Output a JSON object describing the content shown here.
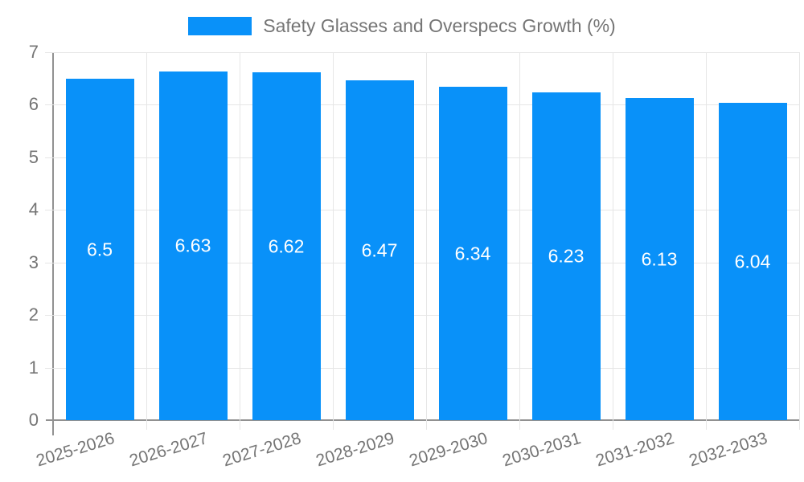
{
  "chart_data": {
    "type": "bar",
    "title": "Safety Glasses and Overspecs Growth (%)",
    "legend": {
      "position": "top",
      "entries": [
        "Safety Glasses and Overspecs Growth (%)"
      ]
    },
    "categories": [
      "2025-2026",
      "2026-2027",
      "2027-2028",
      "2028-2029",
      "2029-2030",
      "2030-2031",
      "2031-2032",
      "2032-2033"
    ],
    "series": [
      {
        "name": "Safety Glasses and Overspecs Growth (%)",
        "values": [
          6.5,
          6.63,
          6.62,
          6.47,
          6.34,
          6.23,
          6.13,
          6.04
        ],
        "value_labels": [
          "6.5",
          "6.63",
          "6.62",
          "6.47",
          "6.34",
          "6.23",
          "6.13",
          "6.04"
        ]
      }
    ],
    "xlabel": "",
    "ylabel": "",
    "ylim": [
      0,
      7
    ],
    "yticks": [
      0,
      1,
      2,
      3,
      4,
      5,
      6,
      7
    ],
    "ytick_labels": [
      "0",
      "1",
      "2",
      "3",
      "4",
      "5",
      "6",
      "7"
    ],
    "grid": "on",
    "x_label_rotation_deg": -17,
    "colors": {
      "bar": "#0991f9",
      "value_label_text": "#ffffff",
      "axis_text": "#757575",
      "gridline": "#e6e6e6",
      "axis_line": "#919191",
      "background": "#ffffff"
    }
  }
}
